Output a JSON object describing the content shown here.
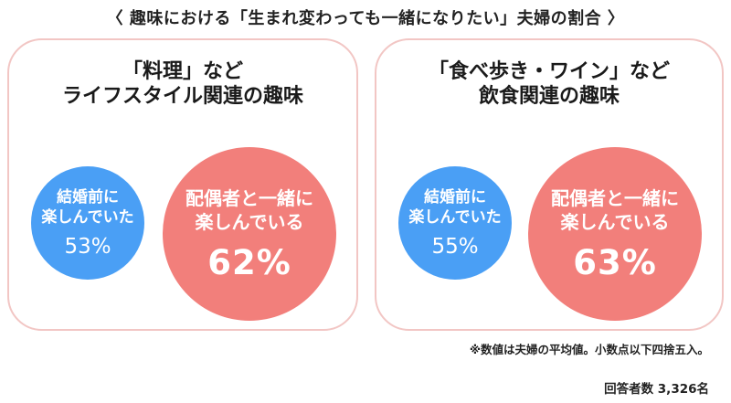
{
  "title": "〈 趣味における「生まれ変わっても一緒になりたい」夫婦の割合 〉",
  "colors": {
    "blue": "#4a9ff5",
    "red": "#f27f7b",
    "panel_border": "#f2c6c4"
  },
  "panels": [
    {
      "title_line1": "「料理」など",
      "title_line2": "ライフスタイル関連の趣味",
      "blue_label_line1": "結婚前に",
      "blue_label_line2": "楽しんでいた",
      "blue_value": "53%",
      "red_label_line1": "配偶者と一緒に",
      "red_label_line2": "楽しんでいる",
      "red_value": "62%"
    },
    {
      "title_line1": "「食べ歩き・ワイン」など",
      "title_line2": "飲食関連の趣味",
      "blue_label_line1": "結婚前に",
      "blue_label_line2": "楽しんでいた",
      "blue_value": "55%",
      "red_label_line1": "配偶者と一緒に",
      "red_label_line2": "楽しんでいる",
      "red_value": "63%"
    }
  ],
  "note": "※数値は夫婦の平均値。小数点以下四捨五入。",
  "respondents": "回答者数 3,326名",
  "chart_data": [
    {
      "type": "bubble",
      "title": "「料理」など ライフスタイル関連の趣味",
      "categories": [
        "結婚前に楽しんでいた",
        "配偶者と一緒に楽しんでいる"
      ],
      "values": [
        53,
        62
      ],
      "unit": "%"
    },
    {
      "type": "bubble",
      "title": "「食べ歩き・ワイン」など 飲食関連の趣味",
      "categories": [
        "結婚前に楽しんでいた",
        "配偶者と一緒に楽しんでいる"
      ],
      "values": [
        55,
        63
      ],
      "unit": "%"
    }
  ]
}
